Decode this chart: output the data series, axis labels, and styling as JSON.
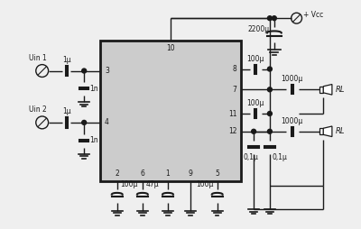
{
  "bg_color": "#efefef",
  "ic_color": "#cccccc",
  "line_color": "#1a1a1a",
  "vcc_label": "+ Vcc",
  "uin1_label": "Uin 1",
  "uin2_label": "Uin 2",
  "rl_label": "RL",
  "cap_2200": "2200μ",
  "cap_100_1": "100μ",
  "cap_100_2": "100μ",
  "cap_1000_1": "1000μ",
  "cap_1000_2": "1000μ",
  "cap_1u_1": "1μ",
  "cap_1u_2": "1μ",
  "cap_1n_1": "1n",
  "cap_1n_2": "1n",
  "cap_100u_b": "100μ",
  "cap_47u": "47μ",
  "cap_100u_p5": "100μ",
  "cap_01_1": "0,1μ",
  "cap_01_2": "0,1μ"
}
